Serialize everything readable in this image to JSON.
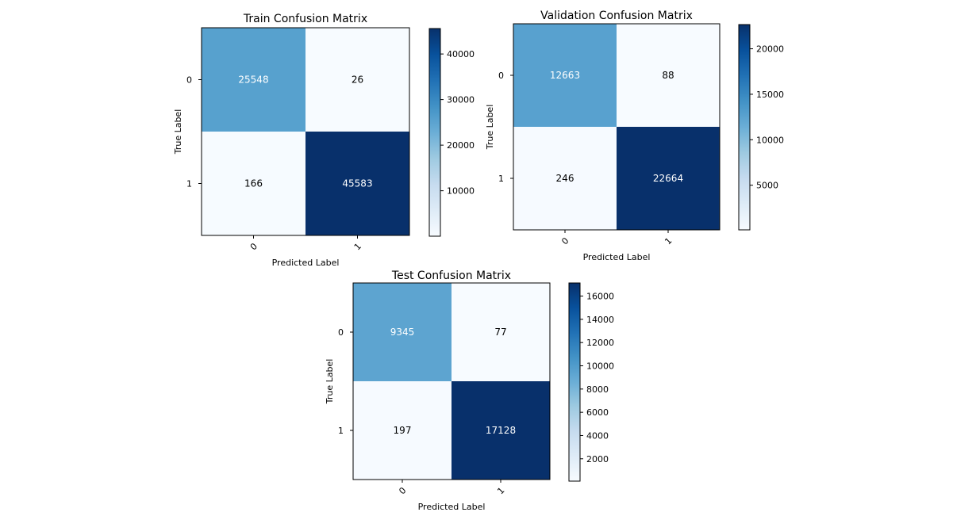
{
  "chart_data": [
    {
      "type": "heatmap",
      "title": "Train Confusion Matrix",
      "xlabel": "Predicted Label",
      "ylabel": "True Label",
      "x_categories": [
        "0",
        "1"
      ],
      "y_categories": [
        "0",
        "1"
      ],
      "values": [
        [
          25548,
          26
        ],
        [
          166,
          45583
        ]
      ],
      "colormap": "Blues",
      "colorbar": {
        "range": [
          26,
          45583
        ],
        "ticks": [
          "10000",
          "20000",
          "30000",
          "40000"
        ],
        "tick_values": [
          10000,
          20000,
          30000,
          40000
        ]
      }
    },
    {
      "type": "heatmap",
      "title": "Validation Confusion Matrix",
      "xlabel": "Predicted Label",
      "ylabel": "True Label",
      "x_categories": [
        "0",
        "1"
      ],
      "y_categories": [
        "0",
        "1"
      ],
      "values": [
        [
          12663,
          88
        ],
        [
          246,
          22664
        ]
      ],
      "colormap": "Blues",
      "colorbar": {
        "range": [
          88,
          22664
        ],
        "ticks": [
          "5000",
          "10000",
          "15000",
          "20000"
        ],
        "tick_values": [
          5000,
          10000,
          15000,
          20000
        ]
      }
    },
    {
      "type": "heatmap",
      "title": "Test Confusion Matrix",
      "xlabel": "Predicted Label",
      "ylabel": "True Label",
      "x_categories": [
        "0",
        "1"
      ],
      "y_categories": [
        "0",
        "1"
      ],
      "values": [
        [
          9345,
          77
        ],
        [
          197,
          17128
        ]
      ],
      "colormap": "Blues",
      "colorbar": {
        "range": [
          77,
          17128
        ],
        "ticks": [
          "2000",
          "4000",
          "6000",
          "8000",
          "10000",
          "12000",
          "14000",
          "16000"
        ],
        "tick_values": [
          2000,
          4000,
          6000,
          8000,
          10000,
          12000,
          14000,
          16000
        ]
      }
    }
  ]
}
